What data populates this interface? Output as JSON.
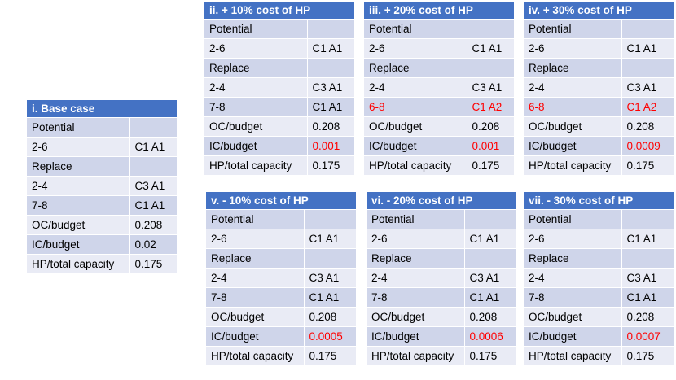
{
  "tables": [
    {
      "id": "base-case",
      "title": "i. Base case",
      "rows": [
        {
          "label": "Potential",
          "value": ""
        },
        {
          "label": "2-6",
          "value": "C1 A1"
        },
        {
          "label": "Replace",
          "value": ""
        },
        {
          "label": "2-4",
          "value": "C3 A1"
        },
        {
          "label": "7-8",
          "value": "C1 A1"
        },
        {
          "label": "OC/budget",
          "value": "0.208"
        },
        {
          "label": "IC/budget",
          "value": "0.02"
        },
        {
          "label": "HP/total capacity",
          "value": "0.175"
        }
      ]
    },
    {
      "id": "plus-10",
      "title": "ii. + 10% cost of HP",
      "rows": [
        {
          "label": "Potential",
          "value": ""
        },
        {
          "label": "2-6",
          "value": "C1 A1"
        },
        {
          "label": "Replace",
          "value": ""
        },
        {
          "label": "2-4",
          "value": "C3 A1"
        },
        {
          "label": "7-8",
          "value": "C1 A1"
        },
        {
          "label": "OC/budget",
          "value": "0.208"
        },
        {
          "label": "IC/budget",
          "value": "0.001",
          "value_red": true
        },
        {
          "label": "HP/total capacity",
          "value": "0.175"
        }
      ]
    },
    {
      "id": "plus-20",
      "title": "iii. + 20% cost of HP",
      "rows": [
        {
          "label": "Potential",
          "value": ""
        },
        {
          "label": "2-6",
          "value": "C1 A1"
        },
        {
          "label": "Replace",
          "value": ""
        },
        {
          "label": "2-4",
          "value": "C3 A1"
        },
        {
          "label": "6-8",
          "value": "C1 A2",
          "label_red": true,
          "value_red": true
        },
        {
          "label": "OC/budget",
          "value": "0.208"
        },
        {
          "label": "IC/budget",
          "value": "0.001",
          "value_red": true
        },
        {
          "label": "HP/total capacity",
          "value": "0.175"
        }
      ]
    },
    {
      "id": "plus-30",
      "title": "iv. + 30% cost of HP",
      "rows": [
        {
          "label": "Potential",
          "value": ""
        },
        {
          "label": "2-6",
          "value": "C1 A1"
        },
        {
          "label": "Replace",
          "value": ""
        },
        {
          "label": "2-4",
          "value": "C3 A1"
        },
        {
          "label": "6-8",
          "value": "C1 A2",
          "label_red": true,
          "value_red": true
        },
        {
          "label": "OC/budget",
          "value": "0.208"
        },
        {
          "label": "IC/budget",
          "value": "0.0009",
          "value_red": true
        },
        {
          "label": "HP/total capacity",
          "value": "0.175"
        }
      ]
    },
    {
      "id": "minus-10",
      "title": "v. - 10% cost of HP",
      "rows": [
        {
          "label": "Potential",
          "value": ""
        },
        {
          "label": "2-6",
          "value": "C1 A1"
        },
        {
          "label": "Replace",
          "value": ""
        },
        {
          "label": "2-4",
          "value": "C3 A1"
        },
        {
          "label": "7-8",
          "value": "C1 A1"
        },
        {
          "label": "OC/budget",
          "value": "0.208"
        },
        {
          "label": "IC/budget",
          "value": "0.0005",
          "value_red": true
        },
        {
          "label": "HP/total capacity",
          "value": "0.175"
        }
      ]
    },
    {
      "id": "minus-20",
      "title": "vi. - 20% cost of HP",
      "rows": [
        {
          "label": "Potential",
          "value": ""
        },
        {
          "label": "2-6",
          "value": "C1 A1"
        },
        {
          "label": "Replace",
          "value": ""
        },
        {
          "label": "2-4",
          "value": "C3 A1"
        },
        {
          "label": "7-8",
          "value": "C1 A1"
        },
        {
          "label": "OC/budget",
          "value": "0.208"
        },
        {
          "label": "IC/budget",
          "value": "0.0006",
          "value_red": true
        },
        {
          "label": "HP/total capacity",
          "value": "0.175"
        }
      ]
    },
    {
      "id": "minus-30",
      "title": "vii. - 30% cost of HP",
      "rows": [
        {
          "label": "Potential",
          "value": ""
        },
        {
          "label": "2-6",
          "value": "C1 A1"
        },
        {
          "label": "Replace",
          "value": ""
        },
        {
          "label": "2-4",
          "value": "C3 A1"
        },
        {
          "label": "7-8",
          "value": "C1 A1"
        },
        {
          "label": "OC/budget",
          "value": "0.208"
        },
        {
          "label": "IC/budget",
          "value": "0.0007",
          "value_red": true
        },
        {
          "label": "HP/total capacity",
          "value": "0.175"
        }
      ]
    }
  ]
}
